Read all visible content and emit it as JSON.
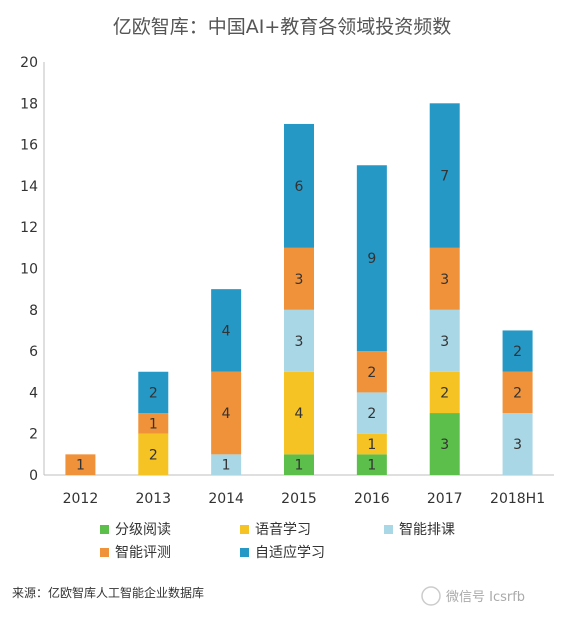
{
  "chart_data": {
    "type": "bar",
    "stacked": true,
    "title": "亿欧智库：中国AI+教育各领域投资频数",
    "categories": [
      "2012",
      "2013",
      "2014",
      "2015",
      "2016",
      "2017",
      "2018H1"
    ],
    "ylim": [
      0,
      20
    ],
    "yticks": [
      0,
      2,
      4,
      6,
      8,
      10,
      12,
      14,
      16,
      18,
      20
    ],
    "grid": false,
    "legend_position": "bottom",
    "series": [
      {
        "name": "分级阅读",
        "color": "#5cbf4c",
        "values": [
          0,
          0,
          0,
          1,
          1,
          3,
          0
        ]
      },
      {
        "name": "语音学习",
        "color": "#f6c324",
        "values": [
          0,
          2,
          0,
          4,
          1,
          2,
          0
        ]
      },
      {
        "name": "智能排课",
        "color": "#a9d7e6",
        "values": [
          0,
          0,
          1,
          3,
          2,
          3,
          3
        ]
      },
      {
        "name": "智能评测",
        "color": "#f0923a",
        "values": [
          1,
          1,
          4,
          3,
          2,
          3,
          2
        ]
      },
      {
        "name": "自适应学习",
        "color": "#2698c6",
        "values": [
          0,
          2,
          4,
          6,
          9,
          7,
          2
        ]
      }
    ]
  },
  "source_text": "来源：亿欧智库人工智能企业数据库",
  "watermark_text": "微信号 Icsrfb"
}
